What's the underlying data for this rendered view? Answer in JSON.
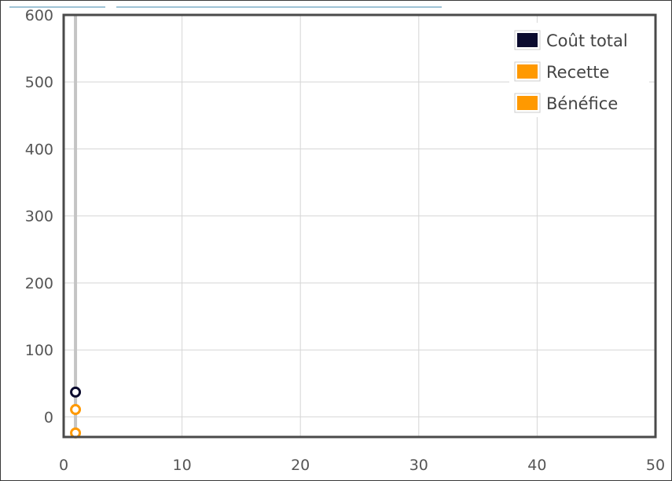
{
  "chart_data": {
    "type": "scatter",
    "title": "",
    "xlabel": "",
    "ylabel": "",
    "xlim": [
      0,
      50
    ],
    "ylim": [
      -30,
      600
    ],
    "x_ticks": [
      0,
      10,
      20,
      30,
      40,
      50
    ],
    "y_ticks": [
      0,
      100,
      200,
      300,
      400,
      500,
      600
    ],
    "x_tick_labels": [
      "0",
      "10",
      "20",
      "30",
      "40",
      "50"
    ],
    "y_tick_labels": [
      "0",
      "100",
      "200",
      "300",
      "400",
      "500",
      "600"
    ],
    "grid": true,
    "legend_position": "top-right",
    "series": [
      {
        "name": "Coût total",
        "color": "#0b0b2e",
        "points": [
          [
            1,
            37
          ]
        ]
      },
      {
        "name": "Recette",
        "color": "#ff9900",
        "points": [
          [
            1,
            11
          ]
        ]
      },
      {
        "name": "Bénéfice",
        "color": "#ff9900",
        "points": [
          [
            1,
            -24
          ]
        ]
      }
    ]
  }
}
